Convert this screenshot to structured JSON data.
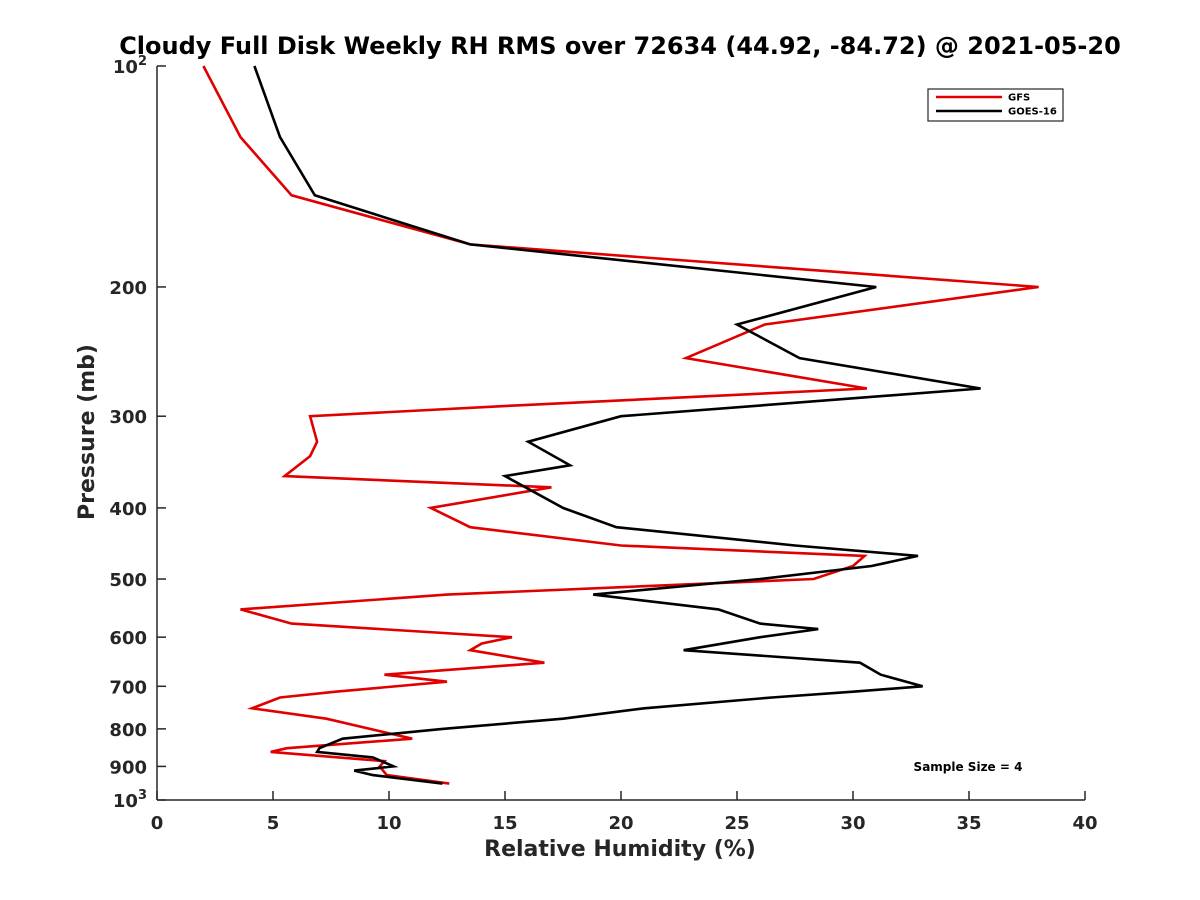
{
  "chart_data": {
    "type": "line",
    "title": "Cloudy Full Disk Weekly RH RMS over 72634 (44.92, -84.72) @ 2021-05-20",
    "xlabel": "Relative Humidity (%)",
    "ylabel": "Pressure (mb)",
    "xlim": [
      0,
      40
    ],
    "ylim": [
      100,
      1000
    ],
    "y_scale": "log",
    "y_reversed": true,
    "grid": false,
    "legend_position": "top-right",
    "x_ticks": [
      "0",
      "5",
      "10",
      "15",
      "20",
      "25",
      "30",
      "35",
      "40"
    ],
    "y_ticks": [
      {
        "value": 100,
        "base": "10",
        "exp": "2"
      },
      {
        "value": 200,
        "label": "200"
      },
      {
        "value": 300,
        "label": "300"
      },
      {
        "value": 400,
        "label": "400"
      },
      {
        "value": 500,
        "label": "500"
      },
      {
        "value": 600,
        "label": "600"
      },
      {
        "value": 700,
        "label": "700"
      },
      {
        "value": 800,
        "label": "800"
      },
      {
        "value": 900,
        "label": "900"
      },
      {
        "value": 1000,
        "base": "10",
        "exp": "3"
      }
    ],
    "series": [
      {
        "name": "GFS",
        "color": "#e00000",
        "points": [
          [
            2.0,
            100
          ],
          [
            3.6,
            125
          ],
          [
            5.8,
            150
          ],
          [
            13.5,
            175
          ],
          [
            38.0,
            200
          ],
          [
            26.2,
            225
          ],
          [
            22.8,
            250
          ],
          [
            30.6,
            275
          ],
          [
            15.5,
            290
          ],
          [
            6.6,
            300
          ],
          [
            6.9,
            325
          ],
          [
            6.6,
            340
          ],
          [
            5.5,
            362
          ],
          [
            17.0,
            375
          ],
          [
            11.8,
            400
          ],
          [
            13.5,
            425
          ],
          [
            20.0,
            450
          ],
          [
            30.5,
            465
          ],
          [
            30.0,
            480
          ],
          [
            28.3,
            500
          ],
          [
            12.5,
            525
          ],
          [
            3.6,
            550
          ],
          [
            5.8,
            575
          ],
          [
            15.3,
            600
          ],
          [
            14.0,
            612
          ],
          [
            13.5,
            625
          ],
          [
            16.7,
            650
          ],
          [
            9.8,
            675
          ],
          [
            12.5,
            690
          ],
          [
            7.7,
            712
          ],
          [
            5.3,
            725
          ],
          [
            4.1,
            750
          ],
          [
            7.3,
            775
          ],
          [
            11.0,
            825
          ],
          [
            5.6,
            850
          ],
          [
            4.9,
            860
          ],
          [
            9.8,
            885
          ],
          [
            9.6,
            900
          ],
          [
            9.9,
            925
          ],
          [
            12.6,
            950
          ]
        ]
      },
      {
        "name": "GOES-16",
        "color": "#000000",
        "points": [
          [
            4.2,
            100
          ],
          [
            5.3,
            125
          ],
          [
            6.8,
            150
          ],
          [
            13.5,
            175
          ],
          [
            31.0,
            200
          ],
          [
            25.0,
            225
          ],
          [
            27.7,
            250
          ],
          [
            35.5,
            275
          ],
          [
            20.0,
            300
          ],
          [
            16.0,
            325
          ],
          [
            17.8,
            350
          ],
          [
            15.0,
            362
          ],
          [
            17.5,
            400
          ],
          [
            19.8,
            425
          ],
          [
            27.5,
            450
          ],
          [
            32.8,
            465
          ],
          [
            30.8,
            480
          ],
          [
            26.0,
            500
          ],
          [
            18.8,
            525
          ],
          [
            24.2,
            550
          ],
          [
            26.0,
            575
          ],
          [
            28.5,
            585
          ],
          [
            26.0,
            600
          ],
          [
            22.7,
            625
          ],
          [
            30.3,
            650
          ],
          [
            31.2,
            675
          ],
          [
            33.0,
            700
          ],
          [
            30.0,
            712
          ],
          [
            26.5,
            725
          ],
          [
            21.0,
            750
          ],
          [
            17.5,
            775
          ],
          [
            12.3,
            800
          ],
          [
            8.0,
            825
          ],
          [
            7.0,
            850
          ],
          [
            6.9,
            860
          ],
          [
            9.3,
            875
          ],
          [
            10.2,
            900
          ],
          [
            8.5,
            912
          ],
          [
            9.3,
            925
          ],
          [
            12.3,
            950
          ]
        ]
      }
    ],
    "annotation": "Sample Size = 4"
  }
}
